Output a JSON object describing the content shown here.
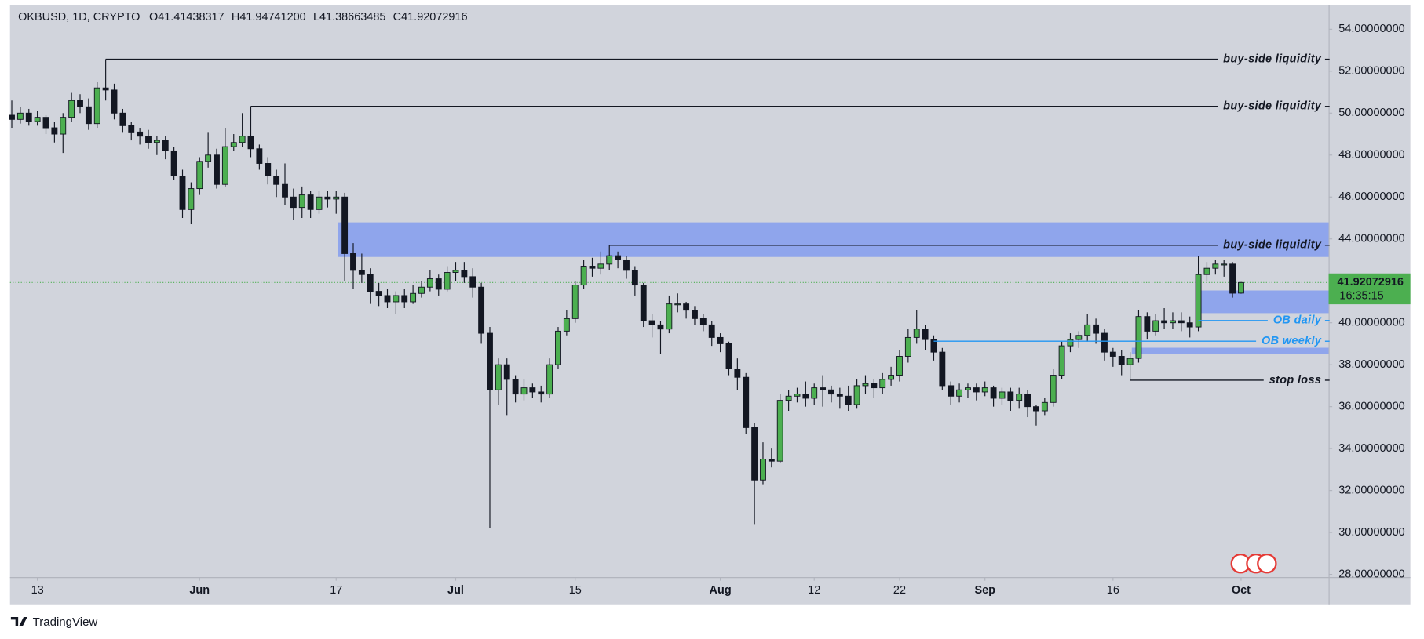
{
  "chart_data": {
    "type": "candlestick",
    "header": {
      "symbol": "OKBUSD, 1D, CRYPTO",
      "ohlc": [
        "O41.41438317",
        "H41.94741200",
        "L41.38663485",
        "C41.92072916"
      ]
    },
    "footer": "TradingView",
    "countdown": "16:35:15",
    "up_color": "#4caf50",
    "down_color": "#131722",
    "zone_color": "#8fa5ec",
    "open": [
      49.9,
      49.7,
      50.0,
      49.6,
      49.8,
      49.3,
      49.0,
      49.8,
      50.6,
      50.3,
      49.5,
      51.2,
      51.1,
      50.0,
      49.4,
      49.1,
      48.9,
      48.6,
      48.7,
      48.2,
      47.0,
      45.4,
      46.4,
      47.7,
      48.0,
      46.6,
      48.4,
      48.6,
      48.9,
      48.3,
      47.6,
      47.0,
      46.6,
      46.0,
      45.5,
      46.1,
      45.4,
      46.0,
      45.9,
      46.0,
      43.3,
      42.5,
      42.3,
      41.5,
      41.3,
      41.0,
      41.3,
      41.0,
      41.4,
      41.7,
      42.1,
      41.6,
      42.4,
      42.5,
      42.2,
      41.7,
      39.5,
      36.8,
      38.0,
      37.3,
      36.6,
      36.9,
      36.7,
      36.6,
      38.0,
      39.6,
      40.2,
      41.8,
      42.7,
      42.6,
      42.8,
      43.2,
      43.0,
      42.5,
      41.8,
      40.1,
      39.9,
      39.7,
      40.9,
      40.9,
      40.6,
      40.2,
      39.9,
      39.3,
      39.0,
      37.8,
      37.4,
      35.0,
      32.5,
      33.5,
      33.4,
      36.3,
      36.5,
      36.6,
      36.4,
      36.9,
      36.8,
      36.6,
      36.5,
      36.1,
      37.0,
      37.1,
      36.9,
      37.3,
      37.5,
      38.4,
      39.3,
      39.7,
      39.2,
      38.6,
      37.0,
      36.5,
      36.8,
      36.9,
      36.7,
      36.9,
      36.4,
      36.7,
      36.3,
      36.6,
      36.0,
      35.8,
      36.2,
      37.5,
      38.9,
      39.2,
      39.4,
      39.9,
      39.5,
      38.6,
      38.4,
      38.0,
      38.3,
      40.3,
      39.6,
      40.1,
      40.0,
      40.1,
      40.0,
      39.8,
      42.3,
      42.6,
      42.8,
      42.8,
      41.41438317
    ],
    "high": [
      50.6,
      50.3,
      50.2,
      50.1,
      49.9,
      49.6,
      50.0,
      51.0,
      50.9,
      50.7,
      51.5,
      52.57,
      51.4,
      50.2,
      49.6,
      49.3,
      49.2,
      48.9,
      48.9,
      48.4,
      47.3,
      46.7,
      47.9,
      49.1,
      48.3,
      49.3,
      49.0,
      50.0,
      50.32,
      48.5,
      47.9,
      47.3,
      47.6,
      46.4,
      46.5,
      46.3,
      46.3,
      46.3,
      46.3,
      46.2,
      43.8,
      43.3,
      42.6,
      41.9,
      41.6,
      41.5,
      41.6,
      41.8,
      42.0,
      42.5,
      42.3,
      42.7,
      42.9,
      42.9,
      42.6,
      41.9,
      39.8,
      38.3,
      38.3,
      37.5,
      37.3,
      37.1,
      37.0,
      38.3,
      39.8,
      40.6,
      42.0,
      43.0,
      43.1,
      43.4,
      43.7,
      43.4,
      43.2,
      42.7,
      41.9,
      40.4,
      40.1,
      41.3,
      41.4,
      41.0,
      40.8,
      40.4,
      40.1,
      39.5,
      39.1,
      38.3,
      37.6,
      35.2,
      34.3,
      34.0,
      36.6,
      36.8,
      36.9,
      37.2,
      37.1,
      37.5,
      37.0,
      36.9,
      37.0,
      37.3,
      37.5,
      37.3,
      37.6,
      37.9,
      38.7,
      39.7,
      40.6,
      39.9,
      39.4,
      38.8,
      37.2,
      37.1,
      37.1,
      37.1,
      37.2,
      37.0,
      36.9,
      36.9,
      36.9,
      36.8,
      36.1,
      36.4,
      37.8,
      39.1,
      39.5,
      39.6,
      40.4,
      40.2,
      39.7,
      38.8,
      38.7,
      38.6,
      40.6,
      40.5,
      40.4,
      40.7,
      40.5,
      40.5,
      40.3,
      43.2,
      42.9,
      43.0,
      43.0,
      42.9,
      41.947412
    ],
    "low": [
      49.3,
      49.5,
      49.4,
      49.4,
      49.0,
      48.6,
      48.1,
      49.6,
      50.0,
      49.2,
      49.3,
      50.6,
      49.7,
      49.1,
      48.7,
      48.5,
      48.3,
      48.0,
      47.8,
      46.8,
      45.0,
      44.7,
      46.1,
      47.4,
      46.4,
      46.5,
      48.2,
      48.4,
      47.9,
      47.3,
      46.6,
      46.0,
      45.6,
      44.9,
      45.0,
      45.0,
      45.2,
      45.5,
      45.2,
      42.0,
      41.6,
      41.9,
      40.9,
      40.8,
      40.7,
      40.4,
      40.7,
      40.9,
      41.2,
      41.5,
      41.3,
      41.5,
      42.0,
      41.9,
      41.2,
      39.0,
      30.2,
      36.1,
      35.6,
      36.2,
      36.3,
      36.4,
      36.2,
      36.4,
      37.8,
      39.4,
      40.0,
      41.6,
      42.2,
      42.3,
      42.5,
      42.6,
      42.1,
      41.3,
      39.8,
      39.3,
      38.5,
      39.5,
      40.5,
      40.2,
      39.9,
      39.6,
      38.9,
      38.6,
      37.5,
      36.8,
      34.7,
      30.4,
      32.3,
      33.1,
      33.3,
      35.8,
      36.2,
      36.0,
      36.1,
      36.0,
      36.2,
      35.9,
      35.8,
      35.9,
      36.6,
      36.4,
      36.6,
      37.0,
      37.2,
      38.1,
      39.0,
      38.7,
      38.2,
      36.8,
      36.1,
      36.2,
      36.4,
      36.3,
      36.5,
      36.0,
      36.1,
      35.8,
      35.9,
      35.5,
      35.1,
      35.6,
      36.0,
      37.3,
      38.6,
      38.8,
      39.1,
      39.0,
      38.2,
      37.9,
      37.5,
      37.26,
      38.1,
      39.2,
      39.4,
      39.7,
      39.7,
      39.6,
      39.3,
      39.6,
      42.0,
      42.3,
      42.2,
      41.2,
      41.38663485
    ],
    "close": [
      49.7,
      50.0,
      49.6,
      49.8,
      49.3,
      49.0,
      49.8,
      50.6,
      50.3,
      49.5,
      51.2,
      51.1,
      50.0,
      49.4,
      49.1,
      48.9,
      48.6,
      48.7,
      48.2,
      47.0,
      45.4,
      46.4,
      47.7,
      48.0,
      46.6,
      48.4,
      48.6,
      48.9,
      48.3,
      47.6,
      47.0,
      46.6,
      46.0,
      45.5,
      46.1,
      45.4,
      46.0,
      45.9,
      46.0,
      43.3,
      42.5,
      42.3,
      41.5,
      41.3,
      41.0,
      41.3,
      41.0,
      41.4,
      41.7,
      42.1,
      41.6,
      42.4,
      42.5,
      42.2,
      41.7,
      39.5,
      36.8,
      38.0,
      37.3,
      36.6,
      36.9,
      36.7,
      36.6,
      38.0,
      39.6,
      40.2,
      41.8,
      42.7,
      42.6,
      42.8,
      43.2,
      43.0,
      42.5,
      41.8,
      40.1,
      39.9,
      39.7,
      40.9,
      40.9,
      40.6,
      40.2,
      39.9,
      39.3,
      39.0,
      37.8,
      37.4,
      35.0,
      32.5,
      33.5,
      33.4,
      36.3,
      36.5,
      36.6,
      36.4,
      36.9,
      36.8,
      36.6,
      36.5,
      36.1,
      37.0,
      37.1,
      36.9,
      37.3,
      37.5,
      38.4,
      39.3,
      39.7,
      39.2,
      38.6,
      37.0,
      36.5,
      36.8,
      36.9,
      36.7,
      36.9,
      36.4,
      36.7,
      36.3,
      36.6,
      36.0,
      35.8,
      36.2,
      37.5,
      38.9,
      39.2,
      39.4,
      39.9,
      39.5,
      38.6,
      38.4,
      38.0,
      38.3,
      40.3,
      39.6,
      40.1,
      40.0,
      40.1,
      40.0,
      39.8,
      42.3,
      42.6,
      42.8,
      42.8,
      41.41,
      41.92072916
    ],
    "xlim": [
      -0.21,
      154.26
    ],
    "xticks": [
      {
        "value": 3,
        "label": "13"
      },
      {
        "value": 22,
        "label": "Jun"
      },
      {
        "value": 38,
        "label": "17"
      },
      {
        "value": 52,
        "label": "Jul"
      },
      {
        "value": 66,
        "label": "15"
      },
      {
        "value": 83,
        "label": "Aug"
      },
      {
        "value": 94,
        "label": "12"
      },
      {
        "value": 104,
        "label": "22"
      },
      {
        "value": 114,
        "label": "Sep"
      },
      {
        "value": 129,
        "label": "16"
      },
      {
        "value": 144,
        "label": "Oct"
      }
    ],
    "ylim": [
      27.87,
      55.17
    ],
    "yticks": [
      {
        "value": 28,
        "label": "28.00000000"
      },
      {
        "value": 30,
        "label": "30.00000000"
      },
      {
        "value": 32,
        "label": "32.00000000"
      },
      {
        "value": 34,
        "label": "34.00000000"
      },
      {
        "value": 36,
        "label": "36.00000000"
      },
      {
        "value": 38,
        "label": "38.00000000"
      },
      {
        "value": 40,
        "label": "40.00000000"
      },
      {
        "value": 42,
        "label": "42.00000000"
      },
      {
        "value": 44,
        "label": "44.00000000"
      },
      {
        "value": 46,
        "label": "46.00000000"
      },
      {
        "value": 48,
        "label": "48.00000000"
      },
      {
        "value": 50,
        "label": "50.00000000"
      },
      {
        "value": 52,
        "label": "52.00000000"
      },
      {
        "value": 54,
        "label": "54.00000000"
      }
    ],
    "zones": [
      {
        "top": 44.79,
        "bottom": 43.14,
        "start": 38.2
      },
      {
        "top": 41.54,
        "bottom": 40.46,
        "start": 138.8
      },
      {
        "top": 38.81,
        "bottom": 38.51,
        "start": 131.2
      }
    ],
    "levels": [
      {
        "label": "buy-side liquidity",
        "value": 52.57,
        "start": 11,
        "color": "#131722"
      },
      {
        "label": "buy-side liquidity",
        "value": 50.32,
        "start": 28,
        "color": "#131722"
      },
      {
        "label": "buy-side liquidity",
        "value": 43.7,
        "start": 70,
        "color": "#131722"
      },
      {
        "label": "OB daily",
        "value": 40.11,
        "start": 139,
        "color": "#2196f3"
      },
      {
        "label": "OB weekly",
        "value": 39.12,
        "start": 108,
        "color": "#2196f3"
      },
      {
        "label": "stop loss",
        "value": 37.26,
        "start": 131,
        "color": "#131722"
      }
    ]
  }
}
